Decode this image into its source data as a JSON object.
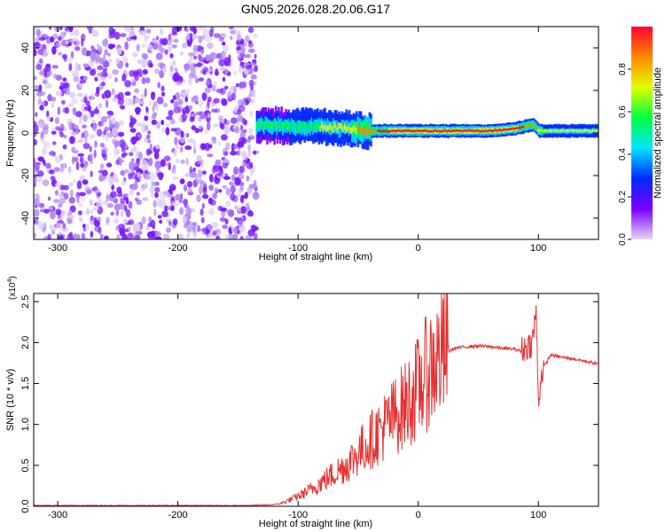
{
  "title": "GN05.2026.028.20.06.G17",
  "chart_data": [
    {
      "type": "heatmap",
      "title": "GN05.2026.028.20.06.G17",
      "xlabel": "Height of straight line (km)",
      "ylabel": "Frequency (Hz)",
      "xlim": [
        -320,
        150
      ],
      "ylim": [
        -50,
        50
      ],
      "xticks": [
        -300,
        -200,
        -100,
        0,
        100
      ],
      "yticks": [
        -40,
        -20,
        0,
        20,
        40
      ],
      "noise_region_x": [
        -320,
        -135
      ],
      "signal_band": {
        "x": [
          -135,
          -100,
          -80,
          -60,
          -40,
          -20,
          0,
          20,
          40,
          60,
          80,
          95,
          100,
          120,
          150
        ],
        "center_freq_hz": [
          4,
          3,
          3,
          2,
          1,
          1,
          1,
          1,
          1,
          1,
          2,
          4,
          1,
          1,
          1
        ],
        "peak_amplitude": [
          0.35,
          0.45,
          0.5,
          0.55,
          0.75,
          0.85,
          0.9,
          0.95,
          0.95,
          0.9,
          0.85,
          0.7,
          0.6,
          0.55,
          0.5
        ]
      },
      "colorbar": {
        "label": "Normalized spectral amplitude",
        "range": [
          0,
          1
        ],
        "ticks": [
          "0.0",
          "0.2",
          "0.4",
          "0.6",
          "0.8"
        ],
        "colors": [
          "#e6d6f5",
          "#7b00ff",
          "#0028ff",
          "#00e5ff",
          "#00ff40",
          "#e0ff00",
          "#ff8800",
          "#ff0030"
        ]
      }
    },
    {
      "type": "line",
      "xlabel": "Height of straight line (km)",
      "ylabel": "SNR (10 * v/v)",
      "y_multiplier": "(x10",
      "y_multiplier_exp": "4",
      "y_multiplier_close": ")",
      "xlim": [
        -320,
        150
      ],
      "ylim": [
        0,
        2.6
      ],
      "xticks": [
        -300,
        -200,
        -100,
        0,
        100
      ],
      "yticks": [
        "0.0",
        "0.5",
        "1.0",
        "1.5",
        "2.0",
        "2.5"
      ],
      "color": "#e53030",
      "series": [
        {
          "name": "SNR",
          "x": [
            -320,
            -250,
            -200,
            -150,
            -125,
            -115,
            -110,
            -100,
            -90,
            -80,
            -70,
            -60,
            -50,
            -40,
            -30,
            -20,
            -10,
            0,
            10,
            20,
            30,
            40,
            50,
            60,
            70,
            80,
            85,
            90,
            95,
            98,
            100,
            103,
            110,
            120,
            130,
            140,
            150
          ],
          "y": [
            0.01,
            0.01,
            0.01,
            0.01,
            0.015,
            0.03,
            0.06,
            0.12,
            0.2,
            0.3,
            0.4,
            0.5,
            0.65,
            0.8,
            0.95,
            1.1,
            1.25,
            1.45,
            1.7,
            1.85,
            1.93,
            1.95,
            1.96,
            1.95,
            1.93,
            1.92,
            1.9,
            1.95,
            2.0,
            2.4,
            1.3,
            1.65,
            1.85,
            1.82,
            1.8,
            1.77,
            1.74
          ]
        }
      ]
    }
  ]
}
